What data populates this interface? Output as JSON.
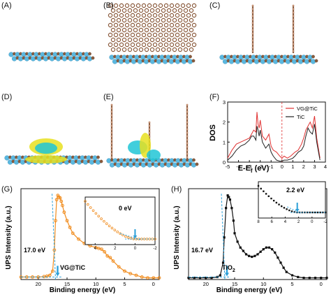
{
  "panel_labels": {
    "a": "(A)",
    "b": "(B)",
    "c": "(C)",
    "d": "(D)",
    "e": "(E)",
    "f": "(F)",
    "g": "(G)",
    "h": "(H)"
  },
  "colors": {
    "carbon": "#8a5a3c",
    "carbon_light": "#c69478",
    "titanium": "#5ab8e0",
    "titanium_light": "#9fd6ee",
    "charge_yellow": "#e8e020",
    "charge_cyan": "#20c6d6",
    "vg_line": "#e03030",
    "tic_line": "#222222",
    "ups_orange": "#f08c1e",
    "ups_black": "#111111",
    "fit_blue": "#2a9fd8"
  },
  "chart_data": [
    {
      "panel": "F",
      "type": "line",
      "xlabel": "E-Ef (eV)",
      "ylabel": "DOS",
      "xlim": [
        -5,
        4
      ],
      "xticks": [
        "-5",
        "-4",
        "-3",
        "-2",
        "-1",
        "0",
        "1",
        "2",
        "3",
        "4"
      ],
      "ylim": [
        0,
        3
      ],
      "yticks": [
        "0",
        "1",
        "2",
        "3"
      ],
      "legend_position": "top-right",
      "series": [
        {
          "name": "VG@TiC",
          "color": "#e03030",
          "x": [
            -5,
            -4.6,
            -4.2,
            -3.8,
            -3.4,
            -3.0,
            -2.8,
            -2.6,
            -2.4,
            -2.3,
            -2.2,
            -2.1,
            -2.0,
            -1.8,
            -1.5,
            -1.2,
            -1.0,
            -0.8,
            -0.5,
            -0.2,
            0,
            0.2,
            0.5,
            0.8,
            1.0,
            1.2,
            1.5,
            1.8,
            2.0,
            2.2,
            2.4,
            2.6,
            2.8,
            3.0,
            3.2,
            3.5
          ],
          "y": [
            0.2,
            0.6,
            0.9,
            1.0,
            1.1,
            1.2,
            1.4,
            1.6,
            1.5,
            2.5,
            1.9,
            1.7,
            2.1,
            1.3,
            1.1,
            1.4,
            0.8,
            0.6,
            0.5,
            0.3,
            0.2,
            0.3,
            0.2,
            0.3,
            0.4,
            0.5,
            0.6,
            0.9,
            1.2,
            1.6,
            1.8,
            2.0,
            1.7,
            2.3,
            1.2,
            0.2
          ]
        },
        {
          "name": "TiC",
          "color": "#222222",
          "x": [
            -5,
            -4.6,
            -4.2,
            -3.8,
            -3.4,
            -3.0,
            -2.8,
            -2.6,
            -2.4,
            -2.3,
            -2.2,
            -2.1,
            -2.0,
            -1.8,
            -1.5,
            -1.2,
            -1.0,
            -0.8,
            -0.5,
            -0.2,
            0,
            0.2,
            0.5,
            0.8,
            1.0,
            1.2,
            1.5,
            1.8,
            2.0,
            2.2,
            2.4,
            2.6,
            2.8,
            3.0,
            3.2,
            3.5
          ],
          "y": [
            0.1,
            0.3,
            0.6,
            0.8,
            0.9,
            1.1,
            1.3,
            1.3,
            1.1,
            1.8,
            1.6,
            1.3,
            1.6,
            1.0,
            0.7,
            0.9,
            0.5,
            0.3,
            0.1,
            0.05,
            0.05,
            0.1,
            0.1,
            0.15,
            0.2,
            0.3,
            0.5,
            0.6,
            0.8,
            1.3,
            1.7,
            1.5,
            1.4,
            1.9,
            1.0,
            0.1
          ]
        }
      ]
    },
    {
      "panel": "G",
      "type": "scatter",
      "xlabel": "Binding energy (eV)",
      "ylabel": "UPS Intensity (a.u.)",
      "xlim": [
        23,
        -1
      ],
      "xticks": [
        "20",
        "15",
        "10",
        "5",
        "0"
      ],
      "legend": "VG@TiC",
      "annotation": "17.0 eV",
      "inset_annotation": "0 eV",
      "inset_xticks": [
        "4",
        "2",
        "0",
        "-2"
      ],
      "x": [
        23,
        22,
        21,
        20,
        19,
        18.5,
        18,
        17.5,
        17.2,
        17.0,
        16.8,
        16.6,
        16.4,
        16.2,
        16.0,
        15.8,
        15.5,
        15.0,
        14.5,
        14,
        13,
        12,
        11,
        10,
        9.5,
        9,
        8.5,
        8,
        7.5,
        7,
        6,
        5,
        4,
        3,
        2,
        1,
        0,
        -1
      ],
      "y": [
        0.03,
        0.03,
        0.03,
        0.03,
        0.035,
        0.04,
        0.05,
        0.1,
        0.35,
        0.7,
        0.95,
        1.0,
        0.98,
        0.97,
        0.93,
        0.88,
        0.8,
        0.7,
        0.62,
        0.55,
        0.48,
        0.43,
        0.4,
        0.38,
        0.37,
        0.36,
        0.33,
        0.28,
        0.26,
        0.22,
        0.15,
        0.1,
        0.07,
        0.05,
        0.03,
        0.02,
        0.02,
        0.02
      ]
    },
    {
      "panel": "H",
      "type": "scatter",
      "xlabel": "Binding energy (eV)",
      "ylabel": "UPS Intensity (a.u.)",
      "xlim": [
        23,
        -1
      ],
      "xticks": [
        "20",
        "15",
        "10",
        "5",
        "0"
      ],
      "legend": "TiO2",
      "annotation": "16.7 eV",
      "inset_annotation": "2.2 eV",
      "inset_xticks": [
        "8",
        "6",
        "4",
        "2",
        "0",
        "-2"
      ],
      "x": [
        23,
        22,
        21,
        20,
        19,
        18,
        17.5,
        17.0,
        16.8,
        16.5,
        16.2,
        16.0,
        15.8,
        15.5,
        15.2,
        15.0,
        14.5,
        14,
        13.5,
        13,
        12.5,
        12,
        11.5,
        11,
        10.5,
        10,
        9.5,
        9,
        8.5,
        8,
        7.5,
        7,
        6.5,
        6,
        5,
        4,
        3,
        2,
        1,
        0,
        -1
      ],
      "y": [
        0.02,
        0.02,
        0.02,
        0.02,
        0.02,
        0.03,
        0.05,
        0.2,
        0.5,
        0.85,
        1.0,
        0.98,
        0.95,
        0.85,
        0.7,
        0.55,
        0.45,
        0.38,
        0.34,
        0.3,
        0.28,
        0.27,
        0.28,
        0.3,
        0.33,
        0.36,
        0.38,
        0.38,
        0.36,
        0.32,
        0.26,
        0.2,
        0.14,
        0.09,
        0.05,
        0.03,
        0.02,
        0.02,
        0.02,
        0.02,
        0.02
      ]
    }
  ],
  "panel_f": {
    "legend_vg": "VG@TiC",
    "legend_tic": "TiC",
    "xlabel": "E-E",
    "xlabel_sub": "f",
    "xlabel_unit": " (eV)",
    "ylabel": "DOS"
  },
  "panel_g": {
    "ylabel": "UPS Intensity (a.u.)",
    "xlabel": "Binding energy (eV)",
    "legend": "VG@TiC",
    "annotation": "17.0 eV",
    "inset_annotation": "0 eV"
  },
  "panel_h": {
    "ylabel": "UPS Intensity (a.u.)",
    "xlabel": "Binding energy (eV)",
    "legend": "TiO",
    "legend_sub": "2",
    "annotation": "16.7 eV",
    "inset_annotation": "2.2 eV"
  }
}
